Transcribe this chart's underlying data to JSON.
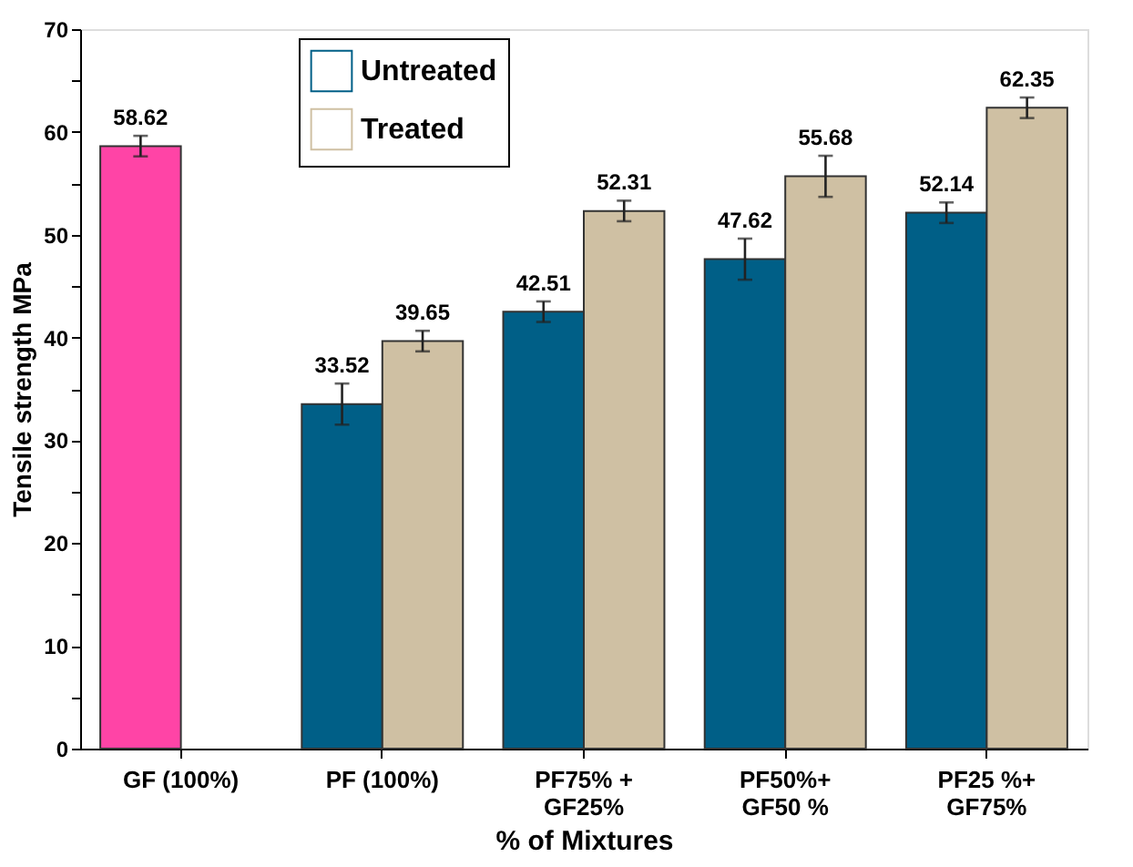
{
  "chart_data": {
    "type": "bar",
    "xlabel": "% of Mixtures",
    "ylabel": "Tensile strength MPa",
    "categories": [
      "GF (100%)",
      "PF (100%)",
      "PF75% +\nGF25%",
      "PF50%+\nGF50 %",
      "PF25 %+\nGF75%"
    ],
    "series": [
      {
        "name": "Untreated",
        "color": "#005f87",
        "colors": [
          "#ff44a6",
          "#005f87",
          "#005f87",
          "#005f87",
          "#005f87"
        ],
        "values": [
          58.62,
          33.52,
          42.51,
          47.62,
          52.14
        ],
        "errors": [
          1,
          2,
          1,
          2,
          1
        ]
      },
      {
        "name": "Treated",
        "color": "#cfc0a3",
        "values": [
          null,
          39.65,
          52.31,
          55.68,
          62.35
        ],
        "errors": [
          null,
          1,
          1,
          2,
          1
        ]
      }
    ],
    "ylim": [
      0,
      70
    ],
    "yticks": [
      0,
      {
        "value": 5,
        "label": null
      },
      10,
      {
        "value": 15,
        "label": null
      },
      20,
      {
        "value": 25,
        "label": null
      },
      30,
      {
        "value": 35,
        "label": null
      },
      40,
      {
        "value": 45,
        "label": null
      },
      50,
      {
        "value": 55,
        "label": null
      },
      60,
      {
        "value": 65,
        "label": null
      },
      70
    ],
    "data_labels": true,
    "legend": "top",
    "grid": false
  }
}
